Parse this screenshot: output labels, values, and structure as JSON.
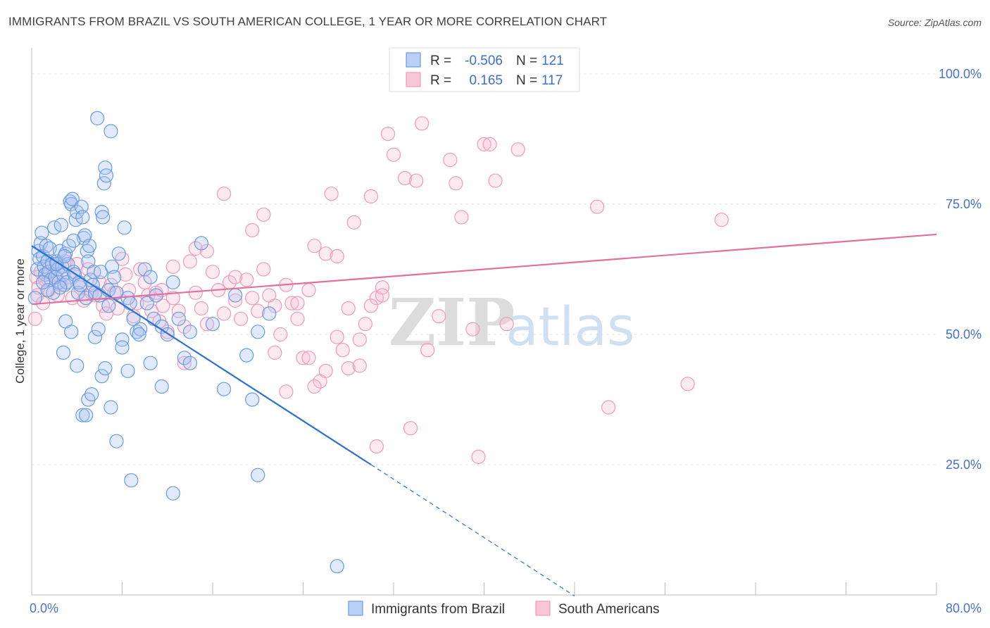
{
  "title": "IMMIGRANTS FROM BRAZIL VS SOUTH AMERICAN COLLEGE, 1 YEAR OR MORE CORRELATION CHART",
  "source": "Source: ZipAtlas.com",
  "watermark": {
    "zip": "ZIP",
    "atlas": "atlas"
  },
  "legend": {
    "row1": {
      "r_label": "R =",
      "r_value": "-0.506",
      "n_label": "N =",
      "n_value": "121"
    },
    "row2": {
      "r_label": "R =",
      "r_value": "0.165",
      "n_label": "N =",
      "n_value": "117"
    }
  },
  "bottom_legend": {
    "series1": "Immigrants from Brazil",
    "series2": "South Americans"
  },
  "colors": {
    "blue": "#6a9be0",
    "blue_fill": "rgba(168,196,240,0.35)",
    "blue_line": "#2d6fd3",
    "pink": "#ef9ab8",
    "pink_fill": "rgba(248,186,208,0.30)",
    "pink_line": "#e3709c",
    "tick_text": "#4472c4"
  },
  "chart_data": {
    "type": "scatter",
    "title": "IMMIGRANTS FROM BRAZIL VS SOUTH AMERICAN COLLEGE, 1 YEAR OR MORE CORRELATION CHART",
    "xlabel": "",
    "ylabel": "College, 1 year or more",
    "xlim": [
      0,
      80
    ],
    "ylim": [
      0,
      105
    ],
    "x_tick_labels": [
      "0.0%",
      "80.0%"
    ],
    "y_ticks": [
      25,
      50,
      75,
      100
    ],
    "y_tick_labels": [
      "25.0%",
      "50.0%",
      "75.0%",
      "100.0%"
    ],
    "grid": true,
    "legend_position": "top-center",
    "series": [
      {
        "name": "Immigrants from Brazil",
        "color": "#6a9be0",
        "R": -0.506,
        "N": 121,
        "trend": {
          "x0": 0,
          "y0": 67.0,
          "x1": 30.0,
          "y1": 25.0,
          "dashed_to_x": 48.0
        },
        "points": [
          [
            0.3,
            57.0
          ],
          [
            0.5,
            62.5
          ],
          [
            0.6,
            66.0
          ],
          [
            0.7,
            64.5
          ],
          [
            0.8,
            67.5
          ],
          [
            0.9,
            69.5
          ],
          [
            1.0,
            65.0
          ],
          [
            1.1,
            63.0
          ],
          [
            1.2,
            61.5
          ],
          [
            1.3,
            67.0
          ],
          [
            1.4,
            64.0
          ],
          [
            1.5,
            62.0
          ],
          [
            1.6,
            66.5
          ],
          [
            1.7,
            60.5
          ],
          [
            1.8,
            63.5
          ],
          [
            1.9,
            58.0
          ],
          [
            2.0,
            70.5
          ],
          [
            2.1,
            61.0
          ],
          [
            2.2,
            64.0
          ],
          [
            2.3,
            62.5
          ],
          [
            2.4,
            60.0
          ],
          [
            2.5,
            66.0
          ],
          [
            2.6,
            71.0
          ],
          [
            2.7,
            63.0
          ],
          [
            2.8,
            61.5
          ],
          [
            2.9,
            59.5
          ],
          [
            3.0,
            65.5
          ],
          [
            3.1,
            60.0
          ],
          [
            3.2,
            63.5
          ],
          [
            3.3,
            67.0
          ],
          [
            3.4,
            75.5
          ],
          [
            3.5,
            75.0
          ],
          [
            3.6,
            76.0
          ],
          [
            3.7,
            62.0
          ],
          [
            3.8,
            61.5
          ],
          [
            3.9,
            72.0
          ],
          [
            4.0,
            73.5
          ],
          [
            4.1,
            58.0
          ],
          [
            4.2,
            60.0
          ],
          [
            4.3,
            59.5
          ],
          [
            4.4,
            74.5
          ],
          [
            4.5,
            72.5
          ],
          [
            4.6,
            68.5
          ],
          [
            4.7,
            69.0
          ],
          [
            4.8,
            57.0
          ],
          [
            4.9,
            66.0
          ],
          [
            5.0,
            64.0
          ],
          [
            5.1,
            67.0
          ],
          [
            5.2,
            60.5
          ],
          [
            5.4,
            59.5
          ],
          [
            5.5,
            62.0
          ],
          [
            5.6,
            58.0
          ],
          [
            5.8,
            91.5
          ],
          [
            6.0,
            57.5
          ],
          [
            6.1,
            62.0
          ],
          [
            6.2,
            73.5
          ],
          [
            6.3,
            72.5
          ],
          [
            6.4,
            79.0
          ],
          [
            6.5,
            82.0
          ],
          [
            6.6,
            80.5
          ],
          [
            6.8,
            58.5
          ],
          [
            7.0,
            89.0
          ],
          [
            7.1,
            63.0
          ],
          [
            7.3,
            61.0
          ],
          [
            7.5,
            58.0
          ],
          [
            7.7,
            65.5
          ],
          [
            8.0,
            49.0
          ],
          [
            8.2,
            70.5
          ],
          [
            8.5,
            57.0
          ],
          [
            8.7,
            56.0
          ],
          [
            9.0,
            53.0
          ],
          [
            9.3,
            50.5
          ],
          [
            9.6,
            51.0
          ],
          [
            10.0,
            62.5
          ],
          [
            10.2,
            56.0
          ],
          [
            10.5,
            61.0
          ],
          [
            10.8,
            53.0
          ],
          [
            11.0,
            57.5
          ],
          [
            11.5,
            51.5
          ],
          [
            12.0,
            50.0
          ],
          [
            12.5,
            60.0
          ],
          [
            13.0,
            53.0
          ],
          [
            14.0,
            50.5
          ],
          [
            15.0,
            67.5
          ],
          [
            16.0,
            52.0
          ],
          [
            17.0,
            39.5
          ],
          [
            18.0,
            57.5
          ],
          [
            19.0,
            46.0
          ],
          [
            20.0,
            50.5
          ],
          [
            21.0,
            54.0
          ],
          [
            2.5,
            59.0
          ],
          [
            2.8,
            46.5
          ],
          [
            3.0,
            52.5
          ],
          [
            3.5,
            50.5
          ],
          [
            4.0,
            44.0
          ],
          [
            4.5,
            34.5
          ],
          [
            4.8,
            34.5
          ],
          [
            5.0,
            37.5
          ],
          [
            5.3,
            38.5
          ],
          [
            5.6,
            49.5
          ],
          [
            5.9,
            51.0
          ],
          [
            6.2,
            42.0
          ],
          [
            6.5,
            43.5
          ],
          [
            7.0,
            36.0
          ],
          [
            7.5,
            29.5
          ],
          [
            8.0,
            47.5
          ],
          [
            8.5,
            43.0
          ],
          [
            8.8,
            22.0
          ],
          [
            9.5,
            50.0
          ],
          [
            10.5,
            44.5
          ],
          [
            11.5,
            40.0
          ],
          [
            12.5,
            19.5
          ],
          [
            13.5,
            45.5
          ],
          [
            14.0,
            44.5
          ],
          [
            19.5,
            37.5
          ],
          [
            27.0,
            5.5
          ],
          [
            1.4,
            58.5
          ],
          [
            2.2,
            63.5
          ],
          [
            6.8,
            55.5
          ],
          [
            3.7,
            68.0
          ],
          [
            1.0,
            60.0
          ],
          [
            2.9,
            65.0
          ],
          [
            20.0,
            23.0
          ]
        ]
      },
      {
        "name": "South Americans",
        "color": "#ef9ab8",
        "R": 0.165,
        "N": 117,
        "trend": {
          "x0": 0,
          "y0": 55.8,
          "x1": 80,
          "y1": 69.2
        },
        "points": [
          [
            0.3,
            53.0
          ],
          [
            0.4,
            61.0
          ],
          [
            0.5,
            57.5
          ],
          [
            0.6,
            59.0
          ],
          [
            0.8,
            62.0
          ],
          [
            1.0,
            56.0
          ],
          [
            1.2,
            60.5
          ],
          [
            1.5,
            58.5
          ],
          [
            1.8,
            63.0
          ],
          [
            2.0,
            61.5
          ],
          [
            2.3,
            57.5
          ],
          [
            2.6,
            59.5
          ],
          [
            3.0,
            64.0
          ],
          [
            3.3,
            61.0
          ],
          [
            3.6,
            57.0
          ],
          [
            4.0,
            63.5
          ],
          [
            4.3,
            59.0
          ],
          [
            4.6,
            56.5
          ],
          [
            5.0,
            62.5
          ],
          [
            5.3,
            58.0
          ],
          [
            5.6,
            57.5
          ],
          [
            6.0,
            60.0
          ],
          [
            6.3,
            55.5
          ],
          [
            6.6,
            54.0
          ],
          [
            7.0,
            59.5
          ],
          [
            7.3,
            58.0
          ],
          [
            7.6,
            55.0
          ],
          [
            8.0,
            64.5
          ],
          [
            8.3,
            61.5
          ],
          [
            8.6,
            58.5
          ],
          [
            9.0,
            53.5
          ],
          [
            9.3,
            56.0
          ],
          [
            9.6,
            62.5
          ],
          [
            10.0,
            60.0
          ],
          [
            10.3,
            57.5
          ],
          [
            10.6,
            54.5
          ],
          [
            11.0,
            58.0
          ],
          [
            11.3,
            52.5
          ],
          [
            11.6,
            55.5
          ],
          [
            12.0,
            50.5
          ],
          [
            12.5,
            57.0
          ],
          [
            13.0,
            54.5
          ],
          [
            13.5,
            51.5
          ],
          [
            14.0,
            64.0
          ],
          [
            14.5,
            58.0
          ],
          [
            15.0,
            55.0
          ],
          [
            15.5,
            52.0
          ],
          [
            16.0,
            62.0
          ],
          [
            16.5,
            58.5
          ],
          [
            17.0,
            54.0
          ],
          [
            17.5,
            60.0
          ],
          [
            18.0,
            56.5
          ],
          [
            18.5,
            53.0
          ],
          [
            19.0,
            60.5
          ],
          [
            19.5,
            57.0
          ],
          [
            20.0,
            54.5
          ],
          [
            20.5,
            62.5
          ],
          [
            21.0,
            57.5
          ],
          [
            21.5,
            55.5
          ],
          [
            22.0,
            50.0
          ],
          [
            22.5,
            59.5
          ],
          [
            23.0,
            56.0
          ],
          [
            23.5,
            53.0
          ],
          [
            24.0,
            45.5
          ],
          [
            24.5,
            58.5
          ],
          [
            25.0,
            67.0
          ],
          [
            25.5,
            41.0
          ],
          [
            26.0,
            65.5
          ],
          [
            26.5,
            77.0
          ],
          [
            27.0,
            49.5
          ],
          [
            27.5,
            47.0
          ],
          [
            28.0,
            43.5
          ],
          [
            28.5,
            71.5
          ],
          [
            29.0,
            49.0
          ],
          [
            29.5,
            52.0
          ],
          [
            30.0,
            76.5
          ],
          [
            30.5,
            57.0
          ],
          [
            31.0,
            59.0
          ],
          [
            31.5,
            88.5
          ],
          [
            32.0,
            84.5
          ],
          [
            33.0,
            80.0
          ],
          [
            33.5,
            32.0
          ],
          [
            34.0,
            79.5
          ],
          [
            34.5,
            90.5
          ],
          [
            35.0,
            47.0
          ],
          [
            36.0,
            53.5
          ],
          [
            37.0,
            83.5
          ],
          [
            37.5,
            79.0
          ],
          [
            38.0,
            72.5
          ],
          [
            39.0,
            51.0
          ],
          [
            39.5,
            26.5
          ],
          [
            40.0,
            86.5
          ],
          [
            40.5,
            86.5
          ],
          [
            41.0,
            79.5
          ],
          [
            42.0,
            52.0
          ],
          [
            43.0,
            85.5
          ],
          [
            50.0,
            74.5
          ],
          [
            51.0,
            36.0
          ],
          [
            58.0,
            40.5
          ],
          [
            61.0,
            72.0
          ],
          [
            17.0,
            77.0
          ],
          [
            19.5,
            70.0
          ],
          [
            20.5,
            73.0
          ],
          [
            14.5,
            66.5
          ],
          [
            18.0,
            61.0
          ],
          [
            21.5,
            46.5
          ],
          [
            22.5,
            39.0
          ],
          [
            23.5,
            56.0
          ],
          [
            24.5,
            45.5
          ],
          [
            25.0,
            40.0
          ],
          [
            26.0,
            43.0
          ],
          [
            27.0,
            65.0
          ],
          [
            28.0,
            55.0
          ],
          [
            29.0,
            44.0
          ],
          [
            30.0,
            55.5
          ],
          [
            31.0,
            57.5
          ],
          [
            11.5,
            58.5
          ],
          [
            12.5,
            63.0
          ],
          [
            15.5,
            66.0
          ],
          [
            13.5,
            44.5
          ],
          [
            30.5,
            28.5
          ]
        ]
      }
    ]
  }
}
